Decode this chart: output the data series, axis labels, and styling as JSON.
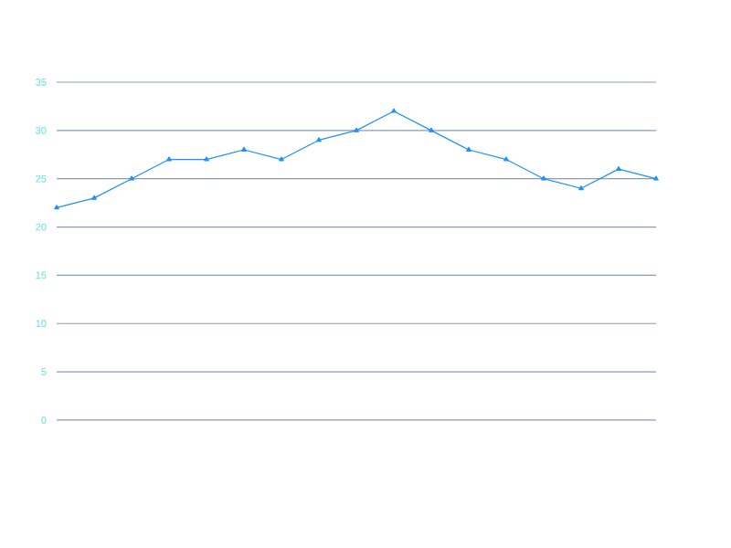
{
  "chart_data": {
    "type": "line",
    "categories": [
      null,
      null,
      null,
      null,
      null,
      null,
      null,
      null,
      null,
      null,
      null,
      null,
      null,
      null,
      null,
      null,
      null
    ],
    "series": [
      {
        "color": "#1e90ff",
        "values": [
          22,
          23,
          25,
          27,
          27,
          28,
          27,
          29,
          30,
          32,
          30,
          28,
          27,
          25,
          24,
          26,
          25
        ]
      }
    ],
    "ylim": [
      0,
      35
    ],
    "yticks": [
      0,
      5,
      10,
      15,
      20,
      25,
      30,
      35
    ],
    "grid": "y",
    "marker": "triangle",
    "line_style": "solid",
    "tick_labels": "y"
  }
}
